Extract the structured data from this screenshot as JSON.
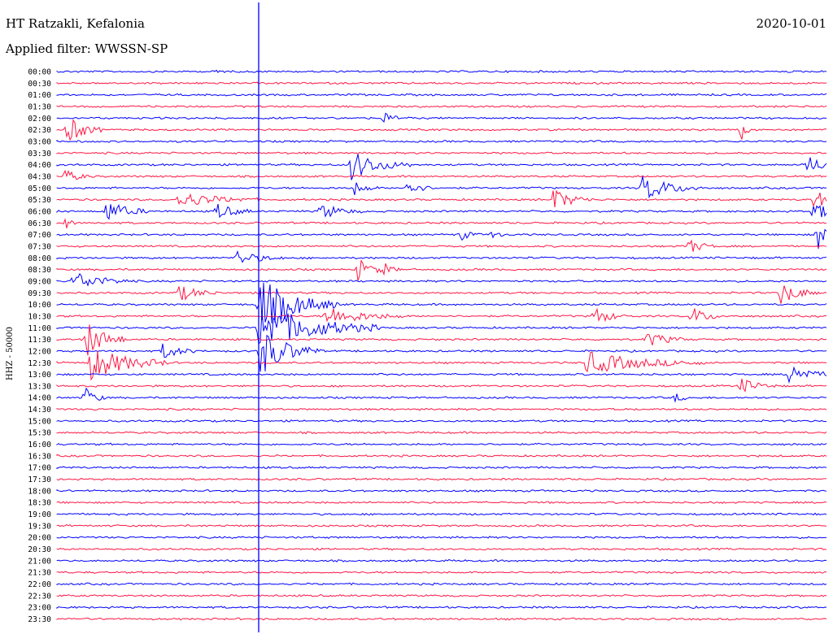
{
  "station": "HT Ratzakli, Kefalonia",
  "date": "2020-10-01",
  "filter": "Applied filter: WWSSN-SP",
  "channel": "HHZ - 50000",
  "colors": {
    "even_row": "#0000ff",
    "odd_row": "#ff1744",
    "marker": "#0000ff"
  },
  "time_labels": [
    "00:00",
    "00:30",
    "01:00",
    "01:30",
    "02:00",
    "02:30",
    "03:00",
    "03:30",
    "04:00",
    "04:30",
    "05:00",
    "05:30",
    "06:00",
    "06:30",
    "07:00",
    "07:30",
    "08:00",
    "08:30",
    "09:00",
    "09:30",
    "10:00",
    "10:30",
    "11:00",
    "11:30",
    "12:00",
    "12:30",
    "13:00",
    "13:30",
    "14:00",
    "14:30",
    "15:00",
    "15:30",
    "16:00",
    "16:30",
    "17:00",
    "17:30",
    "18:00",
    "18:30",
    "19:00",
    "19:30",
    "20:00",
    "20:30",
    "21:00",
    "21:30",
    "22:00",
    "22:30",
    "23:00",
    "23:30"
  ]
}
